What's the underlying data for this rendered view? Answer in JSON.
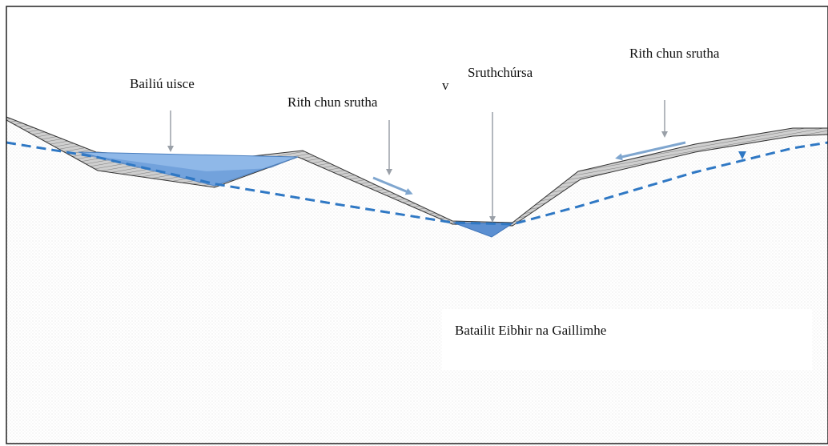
{
  "labels": {
    "catchment": "Bailiú uisce",
    "runoff_left": "Rith chun srutha",
    "runoff_right": "Rith chun srutha",
    "stream": "Sruthchúrsa",
    "bedrock": "Batailit Eibhir na Gaillimhe",
    "stray_mark": "v"
  },
  "colors": {
    "frame": "#222222",
    "water_fill": "#5b8fd1",
    "water_fill_light": "#8fb8e8",
    "water_table": "#2f78c4",
    "soil_fill": "#b5b5b5",
    "ground_edge": "#333333",
    "arrow": "#9aa0a8",
    "flow_arrow": "#7fa6cf",
    "bedrock_tint": "#f3f3f3",
    "label_box": "#ffffff"
  },
  "icons": {
    "water_table_marker": "inverted-triangle-icon",
    "arrows": "down-arrow-icon"
  }
}
